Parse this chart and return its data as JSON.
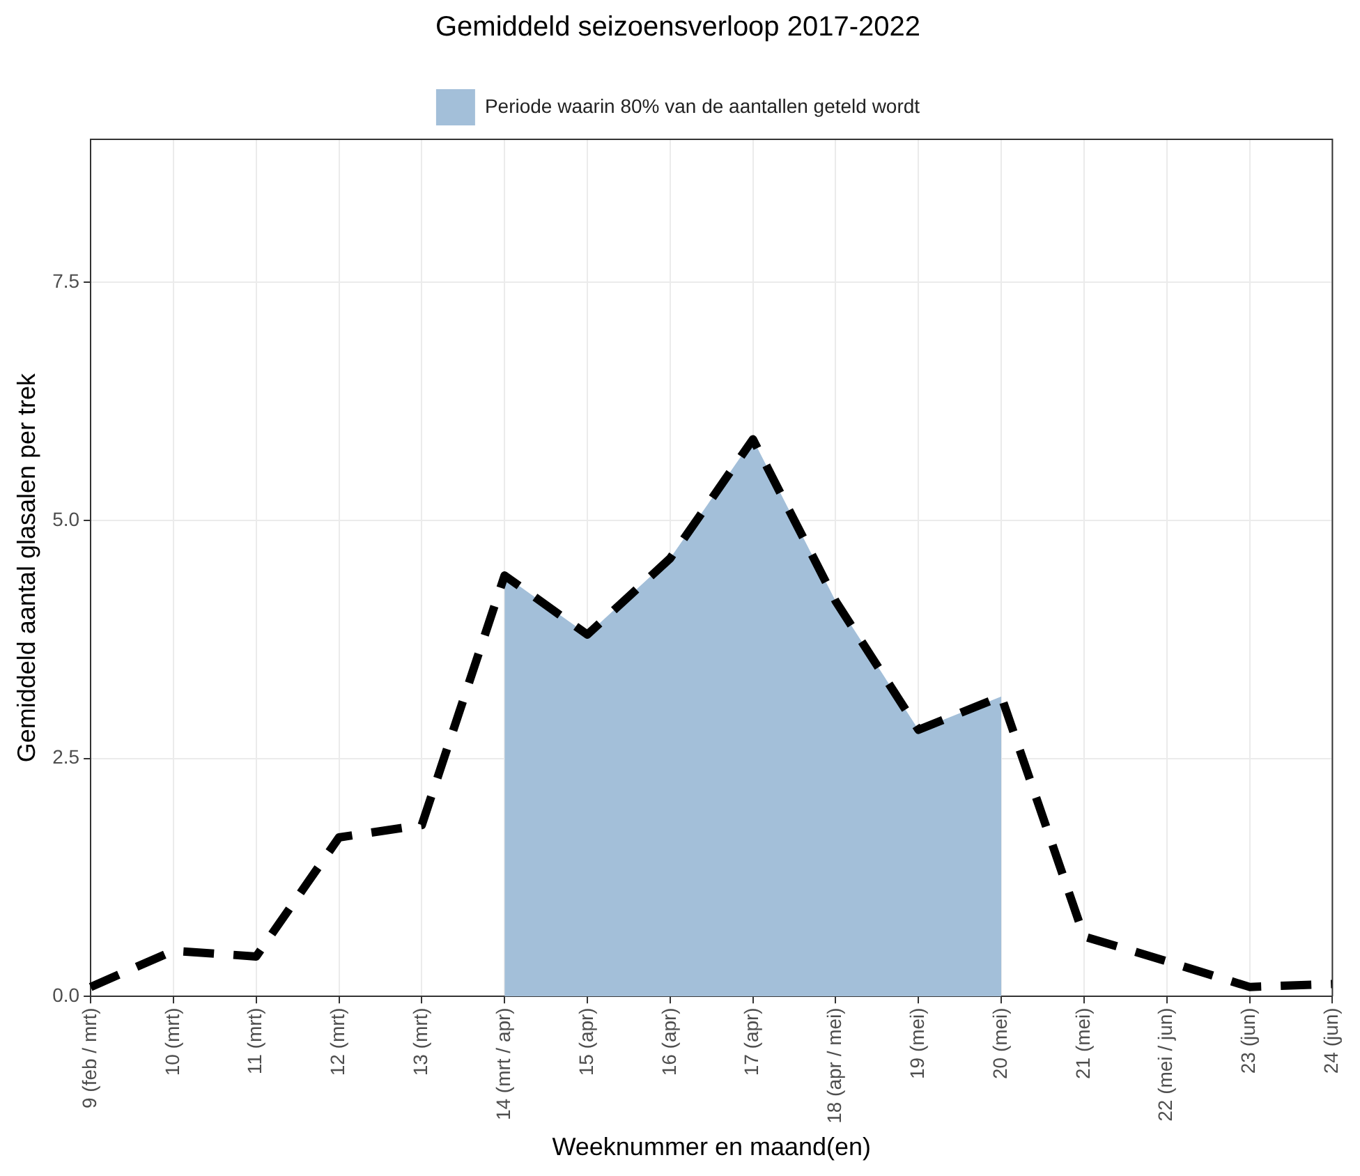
{
  "chart_data": {
    "type": "line",
    "title": "Gemiddeld seizoensverloop 2017-2022",
    "xlabel": "Weeknummer en maand(en)",
    "ylabel": "Gemiddeld aantal glasalen per trek",
    "categories": [
      "9 (feb / mrt)",
      "10 (mrt)",
      "11 (mrt)",
      "12 (mrt)",
      "13 (mrt)",
      "14 (mrt / apr)",
      "15 (apr)",
      "16 (apr)",
      "17 (apr)",
      "18 (apr / mei)",
      "19 (mei)",
      "20 (mei)",
      "21 (mei)",
      "22 (mei / jun)",
      "23 (jun)",
      "24 (jun)"
    ],
    "series": [
      {
        "type": "area",
        "name": "Periode waarin 80% van de aantallen geteld wordt",
        "color": "#a3bfd9",
        "values": [
          null,
          null,
          null,
          null,
          null,
          4.42,
          3.8,
          4.6,
          5.85,
          4.15,
          2.8,
          3.15,
          null,
          null,
          null,
          null
        ]
      },
      {
        "type": "line",
        "color": "#000000",
        "line_style": "dashed",
        "values": [
          0.1,
          0.48,
          0.42,
          1.67,
          1.8,
          4.42,
          3.8,
          4.6,
          5.85,
          4.15,
          2.8,
          3.15,
          0.63,
          0.37,
          0.1,
          0.13
        ]
      }
    ],
    "ylim": [
      0,
      9
    ],
    "yticks": [
      {
        "value": 0,
        "label": "0.0"
      },
      {
        "value": 2.5,
        "label": "2.5"
      },
      {
        "value": 5,
        "label": "5.0"
      },
      {
        "value": 7.5,
        "label": "7.5"
      }
    ],
    "grid": true,
    "legend": "top",
    "marker": "none"
  }
}
